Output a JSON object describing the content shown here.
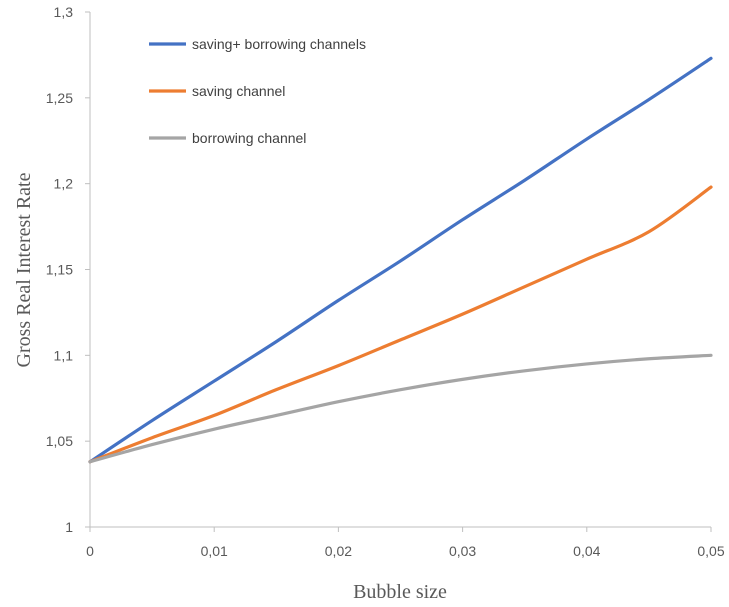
{
  "chart_data": {
    "type": "line",
    "title": "",
    "xlabel": "Bubble size",
    "ylabel": "Gross Real Interest Rate",
    "xlim": [
      0,
      0.05
    ],
    "ylim": [
      1,
      1.3
    ],
    "x_ticks": [
      0,
      0.01,
      0.02,
      0.03,
      0.04,
      0.05
    ],
    "x_tick_labels": [
      "0",
      "0,01",
      "0,02",
      "0,03",
      "0,04",
      "0,05"
    ],
    "y_ticks": [
      1,
      1.05,
      1.1,
      1.15,
      1.2,
      1.25,
      1.3
    ],
    "y_tick_labels": [
      "1",
      "1,05",
      "1,1",
      "1,15",
      "1,2",
      "1,25",
      "1,3"
    ],
    "grid": false,
    "legend_position": "top-left",
    "x": [
      0,
      0.005,
      0.01,
      0.015,
      0.02,
      0.025,
      0.03,
      0.035,
      0.04,
      0.045,
      0.05
    ],
    "series": [
      {
        "name": "saving+ borrowing channels",
        "color": "#4472C4",
        "values": [
          1.038,
          1.062,
          1.085,
          1.108,
          1.132,
          1.155,
          1.179,
          1.202,
          1.226,
          1.249,
          1.273
        ]
      },
      {
        "name": "saving channel",
        "color": "#ED7D31",
        "values": [
          1.038,
          1.052,
          1.065,
          1.08,
          1.094,
          1.109,
          1.124,
          1.14,
          1.156,
          1.172,
          1.198
        ]
      },
      {
        "name": "borrowing channel",
        "color": "#A5A5A5",
        "values": [
          1.038,
          1.048,
          1.057,
          1.065,
          1.073,
          1.08,
          1.086,
          1.091,
          1.095,
          1.098,
          1.1
        ]
      }
    ]
  }
}
